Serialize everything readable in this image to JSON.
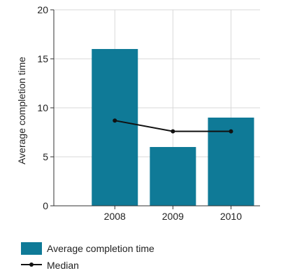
{
  "chart_data": {
    "type": "bar",
    "categories": [
      "2008",
      "2009",
      "2010"
    ],
    "series": [
      {
        "name": "Average completion time",
        "type": "bar",
        "values": [
          16,
          6,
          9
        ],
        "color": "#0f7a97"
      },
      {
        "name": "Median",
        "type": "line",
        "values": [
          8.7,
          7.6,
          7.6
        ],
        "color": "#111111"
      }
    ],
    "ylabel": "Average completion time",
    "ylim": [
      0,
      20
    ],
    "yticks": [
      0,
      5,
      10,
      15,
      20
    ],
    "grid": true,
    "legend": "bottom-left"
  }
}
